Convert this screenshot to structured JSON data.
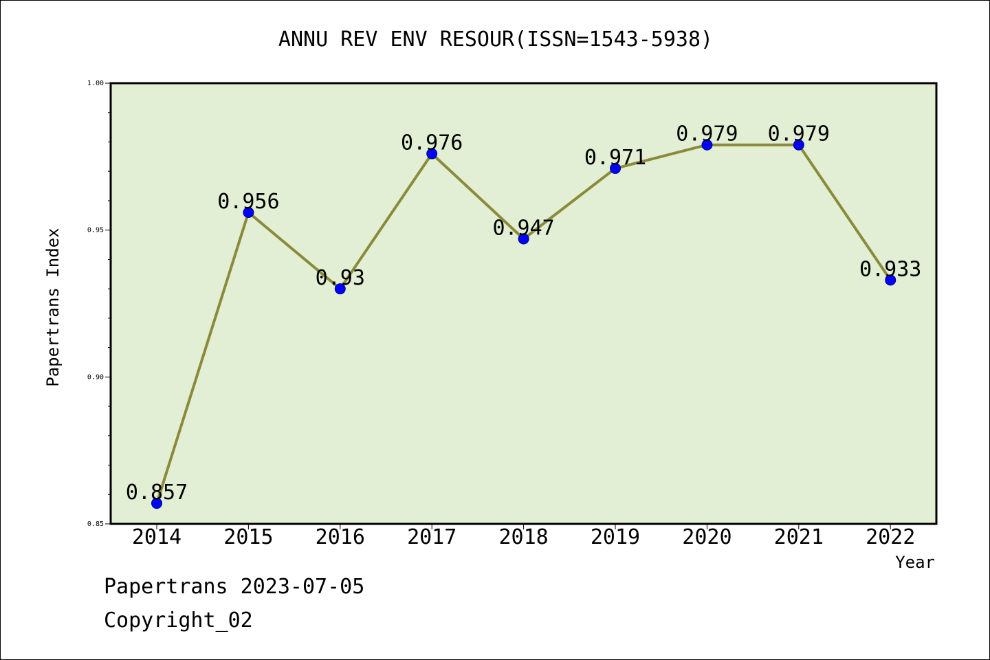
{
  "footer": {
    "line1": "Papertrans 2023-07-05",
    "line2": "Copyright_02"
  },
  "colors": {
    "plot_background": "#e2efd4",
    "line": "#8b8a3a",
    "marker": "#0000ff",
    "marker_edge": "#00007a",
    "axis": "#000000"
  },
  "chart_data": {
    "type": "line",
    "title": "ANNU REV ENV RESOUR(ISSN=1543-5938)",
    "xlabel": "Year",
    "ylabel": "Papertrans Index",
    "ylim": [
      0.85,
      1.0
    ],
    "yticks": [
      "0.85",
      "0.90",
      "0.95",
      "1.00"
    ],
    "grid": false,
    "categories": [
      "2014",
      "2015",
      "2016",
      "2017",
      "2018",
      "2019",
      "2020",
      "2021",
      "2022"
    ],
    "values": [
      0.857,
      0.956,
      0.93,
      0.976,
      0.947,
      0.971,
      0.979,
      0.979,
      0.933
    ],
    "data_labels": [
      "0.857",
      "0.956",
      "0.93",
      "0.976",
      "0.947",
      "0.971",
      "0.979",
      "0.979",
      "0.933"
    ]
  }
}
